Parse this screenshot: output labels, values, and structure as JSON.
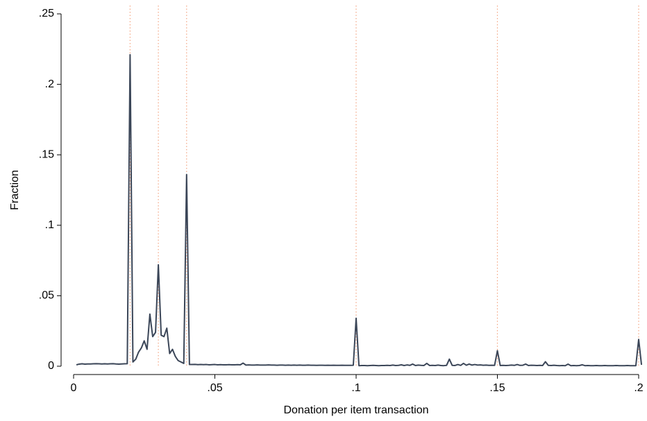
{
  "chart_data": {
    "type": "line",
    "xlabel": "Donation per item transaction",
    "ylabel": "Fraction",
    "color": "#3b4658",
    "refline_color": "#f4a582",
    "xlines": [
      0.02,
      0.03,
      0.04,
      0.1,
      0.15,
      0.2
    ],
    "xlim": [
      0,
      0.2
    ],
    "ylim": [
      0,
      0.25
    ],
    "xticks": [
      0,
      {
        "value": 0.05,
        "label": ".05"
      },
      {
        "value": 0.1,
        "label": ".1"
      },
      {
        "value": 0.15,
        "label": ".15"
      },
      {
        "value": 0.2,
        "label": ".2"
      }
    ],
    "yticks": [
      0,
      {
        "value": 0.05,
        "label": ".05"
      },
      {
        "value": 0.1,
        "label": ".1"
      },
      {
        "value": 0.15,
        "label": ".15"
      },
      {
        "value": 0.2,
        "label": ".2"
      },
      {
        "value": 0.25,
        "label": ".25"
      }
    ],
    "x": [
      0.001,
      0.002,
      0.003,
      0.004,
      0.005,
      0.006,
      0.007,
      0.008,
      0.009,
      0.01,
      0.011,
      0.012,
      0.013,
      0.014,
      0.015,
      0.016,
      0.017,
      0.018,
      0.019,
      0.02,
      0.021,
      0.022,
      0.023,
      0.024,
      0.025,
      0.026,
      0.027,
      0.028,
      0.029,
      0.03,
      0.031,
      0.032,
      0.033,
      0.034,
      0.035,
      0.036,
      0.037,
      0.038,
      0.039,
      0.04,
      0.041,
      0.042,
      0.043,
      0.044,
      0.045,
      0.046,
      0.047,
      0.048,
      0.049,
      0.05,
      0.051,
      0.052,
      0.053,
      0.054,
      0.055,
      0.056,
      0.057,
      0.058,
      0.059,
      0.06,
      0.061,
      0.062,
      0.063,
      0.064,
      0.065,
      0.066,
      0.067,
      0.068,
      0.069,
      0.07,
      0.071,
      0.072,
      0.073,
      0.074,
      0.075,
      0.076,
      0.077,
      0.078,
      0.079,
      0.08,
      0.081,
      0.082,
      0.083,
      0.084,
      0.085,
      0.086,
      0.087,
      0.088,
      0.089,
      0.09,
      0.091,
      0.092,
      0.093,
      0.094,
      0.095,
      0.096,
      0.097,
      0.098,
      0.099,
      0.1,
      0.101,
      0.102,
      0.103,
      0.104,
      0.105,
      0.106,
      0.107,
      0.108,
      0.109,
      0.11,
      0.111,
      0.112,
      0.113,
      0.114,
      0.115,
      0.116,
      0.117,
      0.118,
      0.119,
      0.12,
      0.121,
      0.122,
      0.123,
      0.124,
      0.125,
      0.126,
      0.127,
      0.128,
      0.129,
      0.13,
      0.131,
      0.132,
      0.133,
      0.134,
      0.135,
      0.136,
      0.137,
      0.138,
      0.139,
      0.14,
      0.141,
      0.142,
      0.143,
      0.144,
      0.145,
      0.146,
      0.147,
      0.148,
      0.149,
      0.15,
      0.151,
      0.152,
      0.153,
      0.154,
      0.155,
      0.156,
      0.157,
      0.158,
      0.159,
      0.16,
      0.161,
      0.162,
      0.163,
      0.164,
      0.165,
      0.166,
      0.167,
      0.168,
      0.169,
      0.17,
      0.171,
      0.172,
      0.173,
      0.174,
      0.175,
      0.176,
      0.177,
      0.178,
      0.179,
      0.18,
      0.181,
      0.182,
      0.183,
      0.184,
      0.185,
      0.186,
      0.187,
      0.188,
      0.189,
      0.19,
      0.191,
      0.192,
      0.193,
      0.194,
      0.195,
      0.196,
      0.197,
      0.198,
      0.199,
      0.2,
      0.201
    ],
    "values": [
      0.001,
      0.0015,
      0.0017,
      0.0015,
      0.0016,
      0.0016,
      0.0017,
      0.0018,
      0.0017,
      0.0016,
      0.0017,
      0.0016,
      0.0017,
      0.0018,
      0.0016,
      0.0015,
      0.0016,
      0.0017,
      0.0018,
      0.221,
      0.003,
      0.005,
      0.01,
      0.013,
      0.018,
      0.012,
      0.037,
      0.021,
      0.024,
      0.072,
      0.022,
      0.021,
      0.027,
      0.009,
      0.012,
      0.007,
      0.004,
      0.003,
      0.002,
      0.136,
      0.0012,
      0.0012,
      0.0013,
      0.0011,
      0.0012,
      0.0011,
      0.0012,
      0.001,
      0.0011,
      0.0012,
      0.001,
      0.0011,
      0.001,
      0.001,
      0.0011,
      0.001,
      0.001,
      0.0011,
      0.001,
      0.0022,
      0.0008,
      0.0009,
      0.0008,
      0.0008,
      0.0009,
      0.0008,
      0.0008,
      0.0008,
      0.0009,
      0.0008,
      0.0008,
      0.0007,
      0.0008,
      0.0008,
      0.0007,
      0.0008,
      0.0007,
      0.0008,
      0.0007,
      0.0008,
      0.0007,
      0.0007,
      0.0008,
      0.0007,
      0.0007,
      0.0006,
      0.0007,
      0.0007,
      0.0006,
      0.0007,
      0.0006,
      0.0007,
      0.0006,
      0.0006,
      0.0007,
      0.0006,
      0.0006,
      0.0006,
      0.0007,
      0.034,
      0.0004,
      0.0005,
      0.0005,
      0.0004,
      0.0005,
      0.0006,
      0.0005,
      0.0004,
      0.0005,
      0.0005,
      0.0006,
      0.0005,
      0.0008,
      0.0005,
      0.0006,
      0.001,
      0.0005,
      0.0009,
      0.0006,
      0.0015,
      0.0005,
      0.0008,
      0.0006,
      0.0005,
      0.002,
      0.0005,
      0.0006,
      0.0005,
      0.0008,
      0.0005,
      0.0004,
      0.0006,
      0.005,
      0.0006,
      0.0005,
      0.0012,
      0.0006,
      0.002,
      0.0007,
      0.0015,
      0.0008,
      0.0012,
      0.0008,
      0.0009,
      0.0007,
      0.0008,
      0.0006,
      0.0007,
      0.0006,
      0.011,
      0.0005,
      0.0006,
      0.0005,
      0.0006,
      0.0008,
      0.0006,
      0.0012,
      0.0006,
      0.0007,
      0.0015,
      0.0005,
      0.0007,
      0.0006,
      0.0005,
      0.0006,
      0.0005,
      0.0032,
      0.0006,
      0.0005,
      0.0007,
      0.0005,
      0.0004,
      0.0005,
      0.0004,
      0.0015,
      0.0004,
      0.0005,
      0.0004,
      0.0005,
      0.001,
      0.0004,
      0.0005,
      0.0004,
      0.0004,
      0.0005,
      0.0004,
      0.0004,
      0.0005,
      0.0004,
      0.0004,
      0.0004,
      0.0005,
      0.0004,
      0.0004,
      0.0004,
      0.0005,
      0.0004,
      0.0004,
      0.0004,
      0.019,
      0.001
    ]
  }
}
